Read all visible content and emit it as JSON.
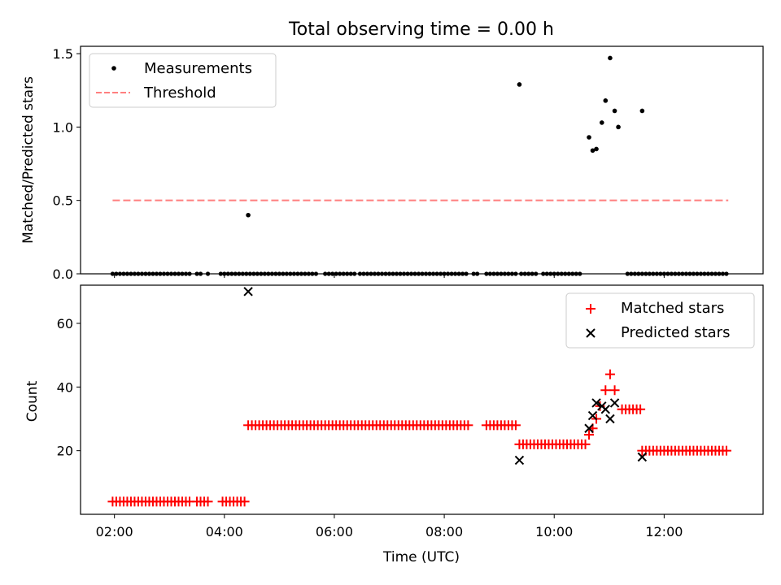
{
  "figure": {
    "title": "Total observing time = 0.00 h"
  },
  "chart_data": [
    {
      "type": "scatter",
      "ylabel": "Matched/Predicted stars",
      "xlim": [
        "01:23",
        "13:48"
      ],
      "ylim": [
        0,
        1.55
      ],
      "yticks": [
        "0.0",
        "0.5",
        "1.0",
        "1.5"
      ],
      "grid": false,
      "legend_position": "upper left",
      "series": [
        {
          "name": "Measurements",
          "marker": "dot",
          "color": "#000000",
          "points": [
            [
              "04:26",
              0.4
            ],
            [
              "09:22",
              1.29
            ],
            [
              "10:38",
              0.93
            ],
            [
              "10:42",
              0.84
            ],
            [
              "10:46",
              0.85
            ],
            [
              "10:52",
              1.03
            ],
            [
              "10:56",
              1.18
            ],
            [
              "11:01",
              1.47
            ],
            [
              "11:06",
              1.11
            ],
            [
              "11:10",
              1.0
            ],
            [
              "11:36",
              1.11
            ]
          ],
          "zero_runs": [
            [
              "01:58",
              "03:23"
            ],
            [
              "03:30",
              "03:34"
            ],
            [
              "03:42",
              "03:44"
            ],
            [
              "03:56",
              "04:26"
            ],
            [
              "04:28",
              "05:40"
            ],
            [
              "05:50",
              "06:22"
            ],
            [
              "06:28",
              "08:24"
            ],
            [
              "08:32",
              "08:36"
            ],
            [
              "08:46",
              "09:20"
            ],
            [
              "09:24",
              "09:40"
            ],
            [
              "09:48",
              "10:30"
            ],
            [
              "11:20",
              "13:10"
            ]
          ],
          "zero_spacing_minutes": 4
        },
        {
          "name": "Threshold",
          "style": "dashed",
          "color": "#ff7f7f",
          "x": [
            "01:58",
            "13:10"
          ],
          "y": [
            0.5,
            0.5
          ]
        }
      ]
    },
    {
      "type": "scatter",
      "xlabel": "Time (UTC)",
      "ylabel": "Count",
      "xlim": [
        "01:23",
        "13:48"
      ],
      "ylim": [
        0,
        72
      ],
      "xticks": [
        "02:00",
        "04:00",
        "06:00",
        "08:00",
        "10:00",
        "12:00"
      ],
      "yticks": [
        "20",
        "40",
        "60"
      ],
      "grid": false,
      "legend_position": "upper right",
      "series": [
        {
          "name": "Matched stars",
          "marker": "plus",
          "color": "#ff0000",
          "runs": [
            {
              "from": "01:58",
              "to": "04:24",
              "value": 4,
              "gaps": [
                [
                  "03:24",
                  "03:30"
                ],
                [
                  "03:44",
                  "03:56"
                ]
              ]
            },
            {
              "from": "04:26",
              "to": "09:20",
              "value": 28,
              "gaps": [
                [
                  "08:26",
                  "08:46"
                ]
              ]
            },
            {
              "from": "09:22",
              "to": "10:34",
              "value": 22,
              "gaps": []
            },
            {
              "from": "11:14",
              "to": "11:34",
              "value": 33,
              "gaps": []
            },
            {
              "from": "11:36",
              "to": "13:10",
              "value": 20,
              "gaps": []
            }
          ],
          "points": [
            [
              "10:38",
              25
            ],
            [
              "10:42",
              27
            ],
            [
              "10:46",
              30
            ],
            [
              "10:50",
              34
            ],
            [
              "10:56",
              39
            ],
            [
              "11:01",
              44
            ],
            [
              "11:06",
              39
            ]
          ]
        },
        {
          "name": "Predicted stars",
          "marker": "x",
          "color": "#000000",
          "points": [
            [
              "04:26",
              70
            ],
            [
              "09:22",
              17
            ],
            [
              "10:38",
              27
            ],
            [
              "10:42",
              31
            ],
            [
              "10:46",
              35
            ],
            [
              "10:52",
              34
            ],
            [
              "10:56",
              33
            ],
            [
              "11:01",
              30
            ],
            [
              "11:06",
              35
            ],
            [
              "11:36",
              18
            ]
          ]
        }
      ]
    }
  ]
}
